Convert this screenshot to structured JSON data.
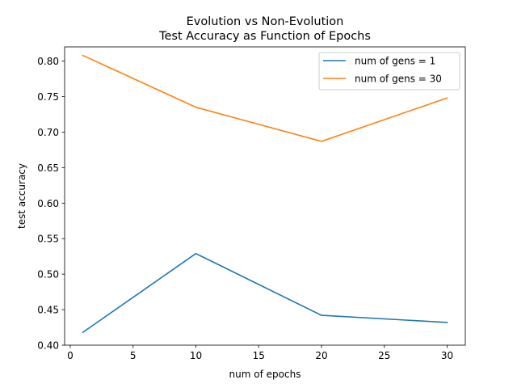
{
  "chart_data": {
    "type": "line",
    "title_line1": "Evolution vs Non-Evolution",
    "title_line2": "Test Accuracy as Function of Epochs",
    "xlabel": "num of epochs",
    "ylabel": "test accuracy",
    "xlim": [
      -0.45,
      31.45
    ],
    "ylim": [
      0.4,
      0.82
    ],
    "xticks": [
      0,
      5,
      10,
      15,
      20,
      25,
      30
    ],
    "xtick_labels": [
      "0",
      "5",
      "10",
      "15",
      "20",
      "25",
      "30"
    ],
    "yticks": [
      0.4,
      0.45,
      0.5,
      0.55,
      0.6,
      0.65,
      0.7,
      0.75,
      0.8
    ],
    "ytick_labels": [
      "0.40",
      "0.45",
      "0.50",
      "0.55",
      "0.60",
      "0.65",
      "0.70",
      "0.75",
      "0.80"
    ],
    "grid": false,
    "legend_position": "top-right",
    "x": [
      1,
      10,
      20,
      30
    ],
    "series": [
      {
        "name": "num of gens = 1",
        "color": "#1f77b4",
        "values": [
          0.418,
          0.529,
          0.442,
          0.432
        ]
      },
      {
        "name": "num of gens = 30",
        "color": "#ff7f0e",
        "values": [
          0.808,
          0.735,
          0.687,
          0.748
        ]
      }
    ]
  }
}
